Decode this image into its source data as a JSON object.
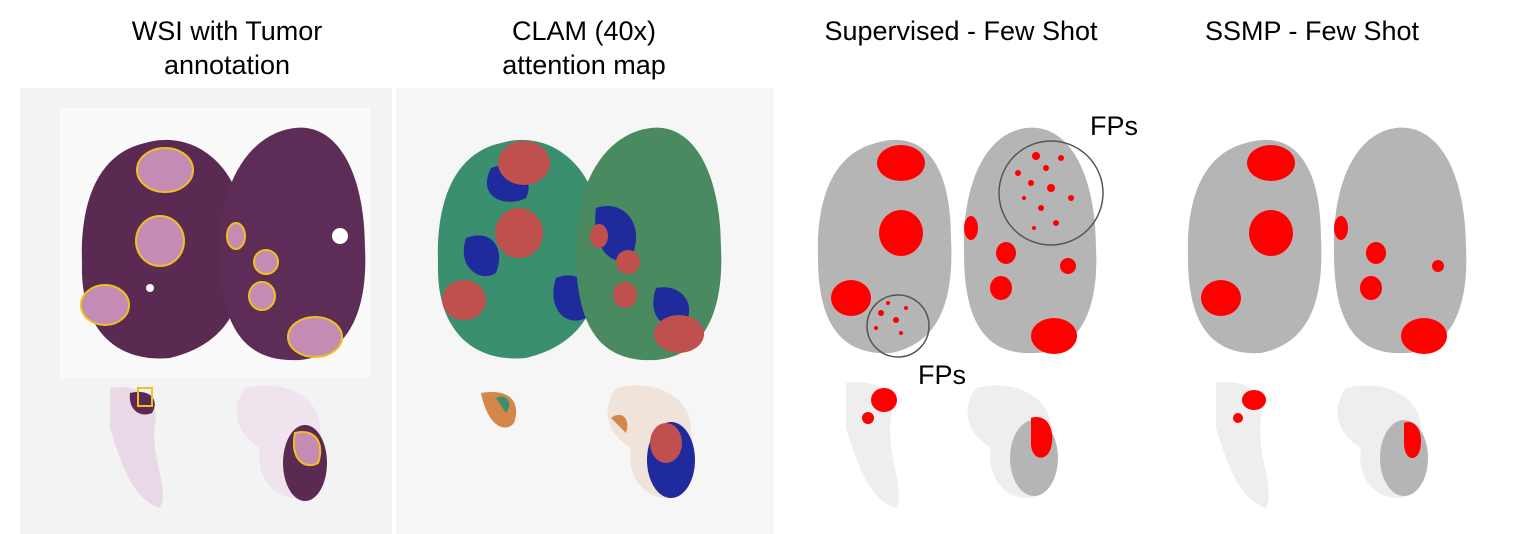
{
  "panels": [
    {
      "title_line1": "WSI with Tumor",
      "title_line2": "annotation"
    },
    {
      "title_line1": "CLAM (40x)",
      "title_line2": "attention map"
    },
    {
      "title_line1": "Supervised - Few Shot",
      "title_line2": ""
    },
    {
      "title_line1": "SSMP - Few Shot",
      "title_line2": ""
    }
  ],
  "annotations": {
    "fp_label": "FPs"
  },
  "colors": {
    "tissue_he": "#5a2a52",
    "tumor_he": "#c48bb5",
    "annotation_outline": "#f0c020",
    "attention_low": "#1f2a9c",
    "attention_mid": "#3a8f6f",
    "attention_high": "#c0504d",
    "mask_tissue": "#b5b5b5",
    "mask_tumor": "#ff0000"
  }
}
